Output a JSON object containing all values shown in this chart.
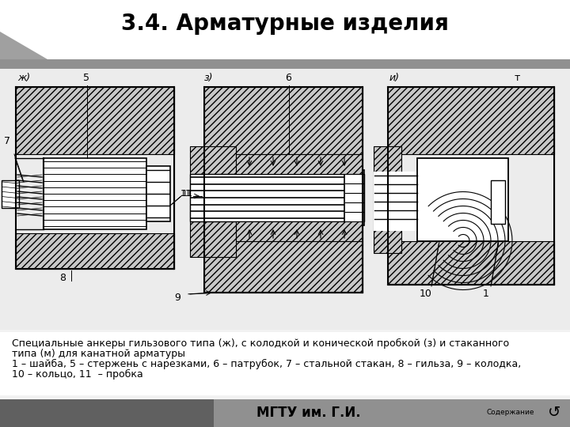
{
  "title": "3.4. Арматурные изделия",
  "title_fontsize": 20,
  "title_fontweight": "bold",
  "slide_bg": "#f2f2f2",
  "draw_bg": "#f0f0f0",
  "hatch_color": "#c8c8c8",
  "caption_line1": "Специальные анкеры гильзового типа (ж), с колодкой и конической пробкой (з) и стаканного",
  "caption_line2": "типа (м) для канатной арматуры",
  "caption_line3": "1 – шайба, 5 – стержень с нарезками, 6 – патрубок, 7 – стальной стакан, 8 – гильза, 9 – колодка,",
  "caption_line4": "10 – кольцо, 11  – пробка",
  "footer_text": "МГТУ им. Г.И.",
  "footer_bg": "#909090",
  "footer_dark": "#606060",
  "caption_fontsize": 9,
  "footer_fontsize": 12
}
